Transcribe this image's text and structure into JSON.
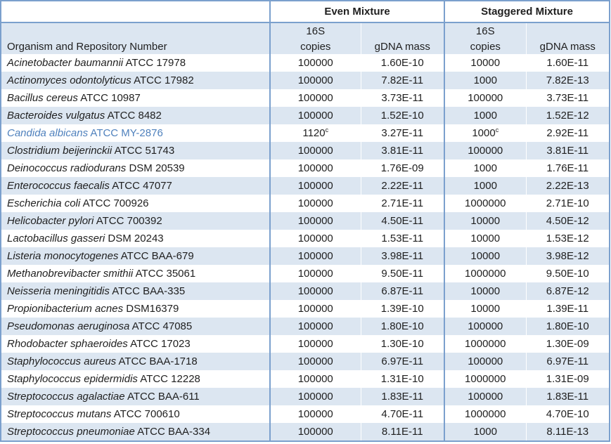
{
  "table": {
    "group_headers": {
      "even": "Even Mixture",
      "staggered": "Staggered Mixture"
    },
    "column_headers": {
      "organism": "Organism and Repository Number",
      "copies_top": "16S",
      "copies_bottom": "copies",
      "gdna": "gDNA mass"
    },
    "footnote_marker": "c",
    "rows": [
      {
        "organism": "Acinetobacter baumannii",
        "repository": "ATCC 17978",
        "even_copies": "100000",
        "even_copies_sup": "",
        "even_gdna": "1.60E-10",
        "stag_copies": "10000",
        "stag_copies_sup": "",
        "stag_gdna": "1.60E-11",
        "highlight": false
      },
      {
        "organism": "Actinomyces odontolyticus",
        "repository": "ATCC 17982",
        "even_copies": "100000",
        "even_copies_sup": "",
        "even_gdna": "7.82E-11",
        "stag_copies": "1000",
        "stag_copies_sup": "",
        "stag_gdna": "7.82E-13",
        "highlight": false
      },
      {
        "organism": "Bacillus cereus",
        "repository": "ATCC 10987",
        "even_copies": "100000",
        "even_copies_sup": "",
        "even_gdna": "3.73E-11",
        "stag_copies": "100000",
        "stag_copies_sup": "",
        "stag_gdna": "3.73E-11",
        "highlight": false
      },
      {
        "organism": "Bacteroides vulgatus",
        "repository": "ATCC 8482",
        "even_copies": "100000",
        "even_copies_sup": "",
        "even_gdna": "1.52E-10",
        "stag_copies": "1000",
        "stag_copies_sup": "",
        "stag_gdna": "1.52E-12",
        "highlight": false
      },
      {
        "organism": "Candida albicans",
        "repository": "ATCC MY-2876",
        "even_copies": "1120",
        "even_copies_sup": "c",
        "even_gdna": "3.27E-11",
        "stag_copies": "1000",
        "stag_copies_sup": "c",
        "stag_gdna": "2.92E-11",
        "highlight": true
      },
      {
        "organism": "Clostridium beijerinckii",
        "repository": "ATCC 51743",
        "even_copies": "100000",
        "even_copies_sup": "",
        "even_gdna": "3.81E-11",
        "stag_copies": "100000",
        "stag_copies_sup": "",
        "stag_gdna": "3.81E-11",
        "highlight": false
      },
      {
        "organism": "Deinococcus radiodurans",
        "repository": "DSM 20539",
        "even_copies": "100000",
        "even_copies_sup": "",
        "even_gdna": "1.76E-09",
        "stag_copies": "1000",
        "stag_copies_sup": "",
        "stag_gdna": "1.76E-11",
        "highlight": false
      },
      {
        "organism": "Enterococcus faecalis",
        "repository": "ATCC 47077",
        "even_copies": "100000",
        "even_copies_sup": "",
        "even_gdna": "2.22E-11",
        "stag_copies": "1000",
        "stag_copies_sup": "",
        "stag_gdna": "2.22E-13",
        "highlight": false
      },
      {
        "organism": "Escherichia coli",
        "repository": "ATCC 700926",
        "even_copies": "100000",
        "even_copies_sup": "",
        "even_gdna": "2.71E-11",
        "stag_copies": "1000000",
        "stag_copies_sup": "",
        "stag_gdna": "2.71E-10",
        "highlight": false
      },
      {
        "organism": "Helicobacter pylori",
        "repository": "ATCC 700392",
        "even_copies": "100000",
        "even_copies_sup": "",
        "even_gdna": "4.50E-11",
        "stag_copies": "10000",
        "stag_copies_sup": "",
        "stag_gdna": "4.50E-12",
        "highlight": false
      },
      {
        "organism": "Lactobacillus gasseri",
        "repository": "DSM 20243",
        "even_copies": "100000",
        "even_copies_sup": "",
        "even_gdna": "1.53E-11",
        "stag_copies": "10000",
        "stag_copies_sup": "",
        "stag_gdna": "1.53E-12",
        "highlight": false
      },
      {
        "organism": "Listeria monocytogenes",
        "repository": "ATCC BAA-679",
        "even_copies": "100000",
        "even_copies_sup": "",
        "even_gdna": "3.98E-11",
        "stag_copies": "10000",
        "stag_copies_sup": "",
        "stag_gdna": "3.98E-12",
        "highlight": false
      },
      {
        "organism": "Methanobrevibacter smithii",
        "repository": "ATCC 35061",
        "even_copies": "100000",
        "even_copies_sup": "",
        "even_gdna": "9.50E-11",
        "stag_copies": "1000000",
        "stag_copies_sup": "",
        "stag_gdna": "9.50E-10",
        "highlight": false
      },
      {
        "organism": "Neisseria meningitidis",
        "repository": "ATCC BAA-335",
        "even_copies": "100000",
        "even_copies_sup": "",
        "even_gdna": "6.87E-11",
        "stag_copies": "10000",
        "stag_copies_sup": "",
        "stag_gdna": "6.87E-12",
        "highlight": false
      },
      {
        "organism": "Propionibacterium acnes",
        "repository": "DSM16379",
        "even_copies": "100000",
        "even_copies_sup": "",
        "even_gdna": "1.39E-10",
        "stag_copies": "10000",
        "stag_copies_sup": "",
        "stag_gdna": "1.39E-11",
        "highlight": false
      },
      {
        "organism": "Pseudomonas aeruginosa",
        "repository": "ATCC 47085",
        "even_copies": "100000",
        "even_copies_sup": "",
        "even_gdna": "1.80E-10",
        "stag_copies": "100000",
        "stag_copies_sup": "",
        "stag_gdna": "1.80E-10",
        "highlight": false
      },
      {
        "organism": "Rhodobacter sphaeroides",
        "repository": "ATCC 17023",
        "even_copies": "100000",
        "even_copies_sup": "",
        "even_gdna": "1.30E-10",
        "stag_copies": "1000000",
        "stag_copies_sup": "",
        "stag_gdna": "1.30E-09",
        "highlight": false
      },
      {
        "organism": "Staphylococcus aureus",
        "repository": "ATCC BAA-1718",
        "even_copies": "100000",
        "even_copies_sup": "",
        "even_gdna": "6.97E-11",
        "stag_copies": "100000",
        "stag_copies_sup": "",
        "stag_gdna": "6.97E-11",
        "highlight": false
      },
      {
        "organism": "Staphylococcus epidermidis",
        "repository": "ATCC 12228",
        "even_copies": "100000",
        "even_copies_sup": "",
        "even_gdna": "1.31E-10",
        "stag_copies": "1000000",
        "stag_copies_sup": "",
        "stag_gdna": "1.31E-09",
        "highlight": false
      },
      {
        "organism": "Streptococcus agalactiae",
        "repository": "ATCC BAA-611",
        "even_copies": "100000",
        "even_copies_sup": "",
        "even_gdna": "1.83E-11",
        "stag_copies": "100000",
        "stag_copies_sup": "",
        "stag_gdna": "1.83E-11",
        "highlight": false
      },
      {
        "organism": "Streptococcus mutans",
        "repository": "ATCC 700610",
        "even_copies": "100000",
        "even_copies_sup": "",
        "even_gdna": "4.70E-11",
        "stag_copies": "1000000",
        "stag_copies_sup": "",
        "stag_gdna": "4.70E-10",
        "highlight": false
      },
      {
        "organism": "Streptococcus pneumoniae",
        "repository": "ATCC BAA-334",
        "even_copies": "100000",
        "even_copies_sup": "",
        "even_gdna": "8.11E-11",
        "stag_copies": "1000",
        "stag_copies_sup": "",
        "stag_gdna": "8.11E-13",
        "highlight": false
      }
    ]
  },
  "colors": {
    "row_alt_bg": "#dce6f1",
    "border_blue": "#7ba0cd",
    "highlight_text": "#4f81bd",
    "text": "#1f1f1f"
  }
}
